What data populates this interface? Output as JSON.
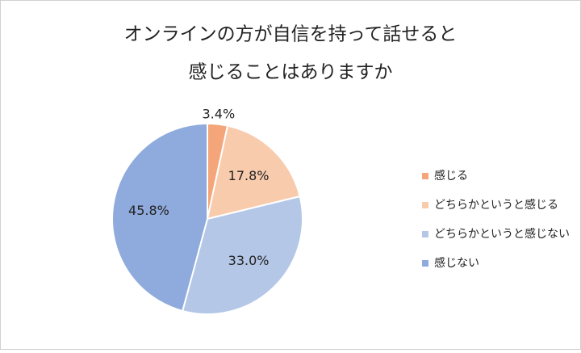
{
  "chart_data": {
    "type": "pie",
    "title": [
      "オンラインの方が自信を持って話せると",
      "感じることはありますか"
    ],
    "categories": [
      "感じる",
      "どちらかというと感じる",
      "どちらかというと感じない",
      "感じない"
    ],
    "values": [
      3.4,
      17.8,
      33.0,
      45.8
    ],
    "value_labels": [
      "3.4%",
      "17.8%",
      "33.0%",
      "45.8%"
    ],
    "colors": [
      "#f4a67a",
      "#f8cbad",
      "#b4c7e7",
      "#8faadc"
    ],
    "legend": "right"
  }
}
